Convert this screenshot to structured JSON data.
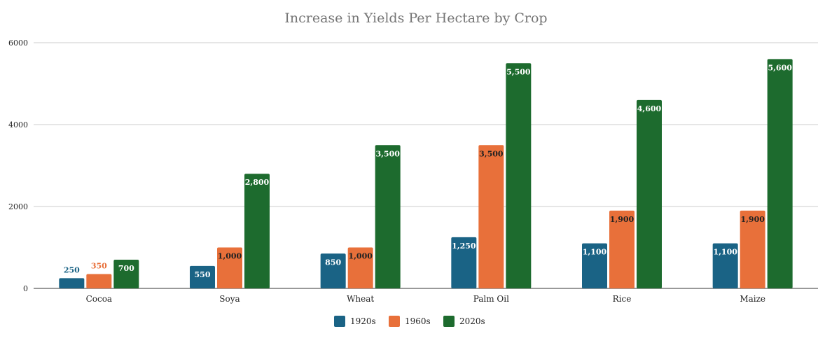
{
  "chart_data": {
    "type": "bar",
    "title": "Increase in Yields Per Hectare by Crop",
    "xlabel": "",
    "ylabel": "",
    "ylim": [
      0,
      6000
    ],
    "yticks": [
      0,
      2000,
      4000,
      6000
    ],
    "grid": true,
    "legend": "bottom",
    "categories": [
      "Cocoa",
      "Soya",
      "Wheat",
      "Palm Oil",
      "Rice",
      "Maize"
    ],
    "series": [
      {
        "name": "1920s",
        "color": "#1a6385",
        "values": [
          250,
          550,
          850,
          1250,
          1100,
          1100
        ],
        "labels": [
          "250",
          "550",
          "850",
          "1,250",
          "1,100",
          "1,100"
        ]
      },
      {
        "name": "1960s",
        "color": "#e8703a",
        "values": [
          350,
          1000,
          1000,
          3500,
          1900,
          1900
        ],
        "labels": [
          "350",
          "1,000",
          "1,000",
          "3,500",
          "1,900",
          "1,900"
        ]
      },
      {
        "name": "2020s",
        "color": "#1d6b2e",
        "values": [
          700,
          2800,
          3500,
          5500,
          4600,
          5600
        ],
        "labels": [
          "700",
          "2,800",
          "3,500",
          "5,500",
          "4,600",
          "5,600"
        ]
      }
    ]
  }
}
